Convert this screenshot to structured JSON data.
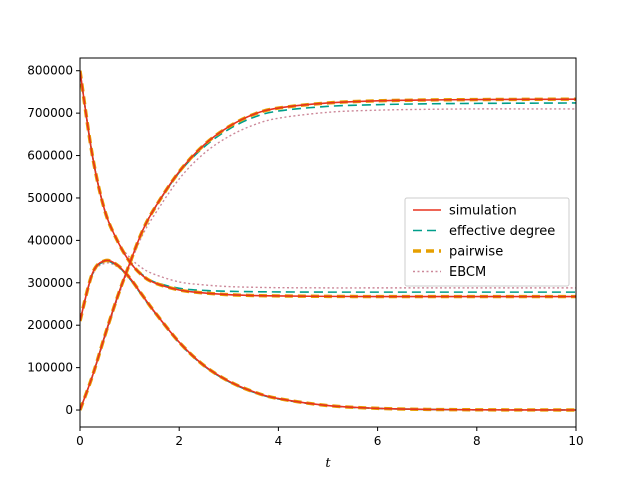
{
  "chart_data": {
    "type": "line",
    "title": "",
    "xlabel": "t",
    "ylabel": "",
    "xlim": [
      0,
      10
    ],
    "ylim": [
      -40000,
      830000
    ],
    "xticks": [
      0,
      2,
      4,
      6,
      8,
      10
    ],
    "xtick_labels": [
      "0",
      "2",
      "4",
      "6",
      "8",
      "10"
    ],
    "yticks": [
      0,
      100000,
      200000,
      300000,
      400000,
      500000,
      600000,
      700000,
      800000
    ],
    "ytick_labels": [
      "0",
      "100000",
      "200000",
      "300000",
      "400000",
      "500000",
      "600000",
      "700000",
      "800000"
    ],
    "grid": false,
    "legend_position": "center-right",
    "legend": [
      {
        "label": "simulation",
        "color": "#e8321e",
        "style": "solid"
      },
      {
        "label": "effective degree",
        "color": "#009e8a",
        "style": "dashed"
      },
      {
        "label": "pairwise",
        "color": "#e69f00",
        "style": "thick-dashed"
      },
      {
        "label": "EBCM",
        "color": "#cc8899",
        "style": "dotted"
      }
    ],
    "x": [
      0,
      0.25,
      0.5,
      0.75,
      1,
      1.25,
      1.5,
      2,
      2.5,
      3,
      3.5,
      4,
      5,
      6,
      7,
      8,
      9,
      10
    ],
    "series": [
      {
        "key": "susceptible_ebcm",
        "style": "EBCM",
        "values": [
          800000,
          600000,
          470000,
          400000,
          360000,
          335000,
          320000,
          302000,
          295000,
          291000,
          289500,
          288500,
          288000,
          288000,
          288000,
          288000,
          288000,
          288000
        ]
      },
      {
        "key": "susceptible_effdeg",
        "style": "effective degree",
        "values": [
          800000,
          600000,
          470000,
          400000,
          350000,
          320000,
          302000,
          287000,
          282000,
          280000,
          279000,
          278500,
          278000,
          278000,
          278000,
          278000,
          278000,
          278000
        ]
      },
      {
        "key": "susceptible_pairwise",
        "style": "pairwise",
        "values": [
          800000,
          600000,
          470000,
          400000,
          350000,
          318000,
          300000,
          283000,
          276000,
          272000,
          270000,
          269000,
          268000,
          267500,
          267500,
          267500,
          267500,
          267500
        ]
      },
      {
        "key": "susceptible_sim",
        "style": "simulation",
        "values": [
          800000,
          600000,
          470000,
          400000,
          350000,
          318000,
          300000,
          283000,
          276000,
          272000,
          270000,
          269000,
          268000,
          267500,
          267500,
          267500,
          267500,
          267500
        ]
      },
      {
        "key": "infected_ebcm",
        "style": "EBCM",
        "values": [
          210000,
          318000,
          346000,
          338000,
          310000,
          270000,
          230000,
          160000,
          105000,
          68000,
          43000,
          27000,
          10500,
          4000,
          1500,
          600,
          200,
          100
        ]
      },
      {
        "key": "infected_effdeg",
        "style": "effective degree",
        "values": [
          210000,
          320000,
          350000,
          340000,
          310000,
          270000,
          230000,
          158000,
          104000,
          67000,
          42000,
          26000,
          10000,
          3800,
          1400,
          500,
          200,
          100
        ]
      },
      {
        "key": "infected_pairwise",
        "style": "pairwise",
        "values": [
          210000,
          322000,
          352000,
          342000,
          312000,
          272000,
          232000,
          160000,
          105000,
          68000,
          43000,
          27000,
          10500,
          4000,
          1500,
          600,
          200,
          100
        ]
      },
      {
        "key": "infected_sim",
        "style": "simulation",
        "values": [
          210000,
          322000,
          352000,
          342000,
          312000,
          272000,
          232000,
          160000,
          105000,
          68000,
          43000,
          27000,
          10500,
          4000,
          1500,
          600,
          200,
          100
        ]
      },
      {
        "key": "recovered_ebcm",
        "style": "EBCM",
        "values": [
          0,
          80000,
          170000,
          260000,
          340000,
          410000,
          460000,
          545000,
          605000,
          645000,
          672000,
          688000,
          702000,
          707000,
          709000,
          710000,
          710000,
          710000
        ]
      },
      {
        "key": "recovered_effdeg",
        "style": "effective degree",
        "values": [
          0,
          80000,
          175000,
          265000,
          345000,
          420000,
          475000,
          560000,
          620000,
          662000,
          690000,
          705000,
          716000,
          720000,
          722000,
          723000,
          723500,
          724000
        ]
      },
      {
        "key": "recovered_pairwise",
        "style": "pairwise",
        "values": [
          0,
          80000,
          175000,
          265000,
          345000,
          420000,
          475000,
          562000,
          625000,
          668000,
          697000,
          712000,
          724000,
          729000,
          731000,
          732000,
          732500,
          733000
        ]
      },
      {
        "key": "recovered_sim",
        "style": "simulation",
        "values": [
          0,
          80000,
          175000,
          265000,
          345000,
          420000,
          475000,
          562000,
          625000,
          668000,
          697000,
          712000,
          724000,
          729000,
          731000,
          732000,
          732500,
          733000
        ]
      }
    ]
  }
}
